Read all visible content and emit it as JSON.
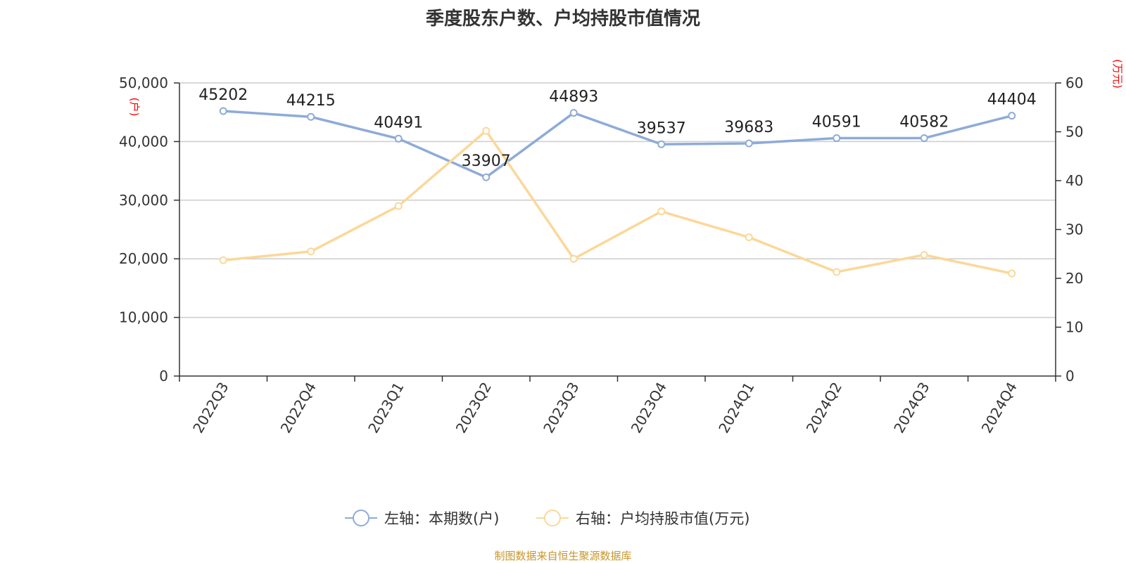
{
  "chart_data": {
    "type": "line",
    "title": "季度股东户数、户均持股市值情况",
    "categories": [
      "2022Q3",
      "2022Q4",
      "2023Q1",
      "2023Q2",
      "2023Q3",
      "2023Q4",
      "2024Q1",
      "2024Q2",
      "2024Q3",
      "2024Q4"
    ],
    "series": [
      {
        "name": "左轴：本期数(户)",
        "axis": "left",
        "color": "#8eabd8",
        "values": [
          45202,
          44215,
          40491,
          33907,
          44893,
          39537,
          39683,
          40591,
          40582,
          44404
        ],
        "labels": [
          "45202",
          "44215",
          "40491",
          "33907",
          "44893",
          "39537",
          "39683",
          "40591",
          "40582",
          "44404"
        ]
      },
      {
        "name": "右轴：户均持股市值(万元)",
        "axis": "right",
        "color": "#fbd898",
        "values": [
          23.7,
          25.5,
          34.8,
          50.2,
          24.0,
          33.7,
          28.4,
          21.3,
          24.8,
          21.0
        ]
      }
    ],
    "left_axis": {
      "unit": "(户)",
      "ylim": [
        0,
        50000
      ],
      "ticks": [
        "0",
        "10,000",
        "20,000",
        "30,000",
        "40,000",
        "50,000"
      ]
    },
    "right_axis": {
      "unit": "(万元)",
      "ylim": [
        0,
        60
      ],
      "ticks": [
        "0",
        "10",
        "20",
        "30",
        "40",
        "50",
        "60"
      ]
    },
    "grid": true,
    "legend_position": "bottom-center"
  },
  "source": "制图数据来自恒生聚源数据库"
}
